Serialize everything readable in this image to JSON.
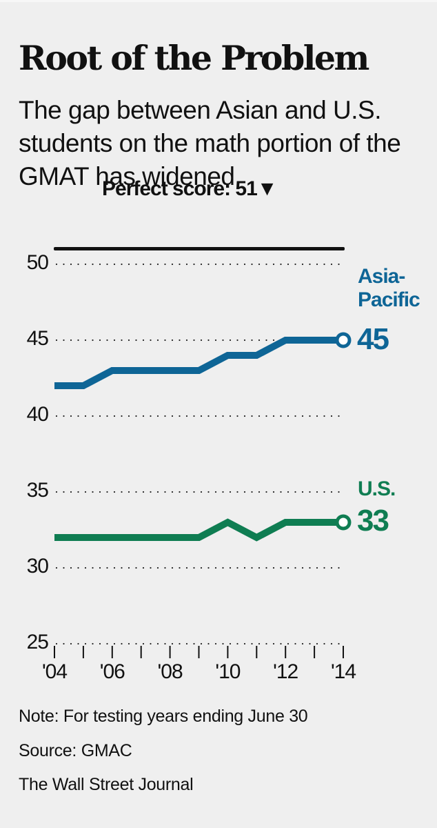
{
  "header": {
    "title": "Root of the Problem",
    "subtitle": "The gap between Asian and U.S. students on the math portion of the GMAT has widened"
  },
  "annotation": {
    "perfect_score": "Perfect score: 51▼"
  },
  "labels": {
    "asia_line1": "Asia-",
    "asia_line2": "Pacific",
    "asia_value": "45",
    "us": "U.S.",
    "us_value": "33"
  },
  "footer": {
    "note": "Note: For testing years ending June 30",
    "source": "Source: GMAC",
    "credit": "The Wall Street Journal"
  },
  "colors": {
    "asia": "#0e6596",
    "us": "#0f7d52",
    "background": "#efefef",
    "text": "#111111"
  },
  "chart_data": {
    "type": "line",
    "title": "Root of the Problem",
    "subtitle": "The gap between Asian and U.S. students on the math portion of the GMAT has widened",
    "xlabel": "",
    "ylabel": "",
    "x": [
      "'04",
      "'05",
      "'06",
      "'07",
      "'08",
      "'09",
      "'10",
      "'11",
      "'12",
      "'13",
      "'14"
    ],
    "x_tick_labels": [
      "'04",
      "'06",
      "'08",
      "'10",
      "'12",
      "'14"
    ],
    "y_ticks": [
      25,
      30,
      35,
      40,
      45,
      50
    ],
    "ylim": [
      25,
      51
    ],
    "grid": "dotted horizontal",
    "series": [
      {
        "name": "Asia-Pacific",
        "color": "#0e6596",
        "values": [
          42,
          42,
          43,
          43,
          43,
          43,
          44,
          44,
          45,
          45,
          45
        ],
        "end_label": "45"
      },
      {
        "name": "U.S.",
        "color": "#0f7d52",
        "values": [
          32,
          32,
          32,
          32,
          32,
          32,
          33,
          32,
          33,
          33,
          33
        ],
        "end_label": "33"
      }
    ],
    "annotations": [
      "Perfect score: 51"
    ],
    "note": "Note: For testing years ending June 30",
    "source": "Source: GMAC"
  }
}
